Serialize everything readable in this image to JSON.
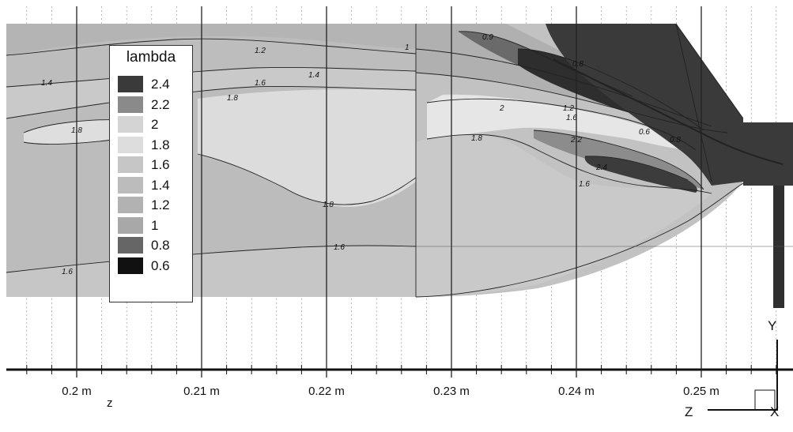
{
  "chart_data": {
    "type": "contour",
    "legend": {
      "title": "lambda",
      "levels": [
        {
          "label": "2.4",
          "value": 2.4,
          "color": "#3a3a3a"
        },
        {
          "label": "2.2",
          "value": 2.2,
          "color": "#8a8a8a"
        },
        {
          "label": "2",
          "value": 2.0,
          "color": "#d4d4d4"
        },
        {
          "label": "1.8",
          "value": 1.8,
          "color": "#dddddd"
        },
        {
          "label": "1.6",
          "value": 1.6,
          "color": "#c6c6c6"
        },
        {
          "label": "1.4",
          "value": 1.4,
          "color": "#bcbcbc"
        },
        {
          "label": "1.2",
          "value": 1.2,
          "color": "#b2b2b2"
        },
        {
          "label": "1",
          "value": 1.0,
          "color": "#a8a8a8"
        },
        {
          "label": "0.8",
          "value": 0.8,
          "color": "#666666"
        },
        {
          "label": "0.6",
          "value": 0.6,
          "color": "#111111"
        }
      ]
    },
    "x_axis": {
      "label": "z",
      "unit": "m",
      "ticks": [
        {
          "value": 0.2,
          "label": "0.2 m"
        },
        {
          "value": 0.21,
          "label": "0.21 m"
        },
        {
          "value": 0.22,
          "label": "0.22 m"
        },
        {
          "value": 0.23,
          "label": "0.23 m"
        },
        {
          "value": 0.24,
          "label": "0.24 m"
        },
        {
          "value": 0.25,
          "label": "0.25 m"
        }
      ]
    },
    "contour_labels": [
      {
        "text": "1.2",
        "z": 0.2145,
        "region": "upper"
      },
      {
        "text": "1",
        "z": 0.2265,
        "region": "upper"
      },
      {
        "text": "1.4",
        "z": 0.1965,
        "region": "upper-left"
      },
      {
        "text": "1.6",
        "z": 0.2145,
        "region": "upper"
      },
      {
        "text": "1.4",
        "z": 0.2185,
        "region": "upper"
      },
      {
        "text": "1.8",
        "z": 0.2125,
        "region": "upper"
      },
      {
        "text": "1.8",
        "z": 0.2,
        "region": "middle-left"
      },
      {
        "text": "1.8",
        "z": 0.2205,
        "region": "middle"
      },
      {
        "text": "1.6",
        "z": 0.2225,
        "region": "lower"
      },
      {
        "text": "1.6",
        "z": 0.1995,
        "region": "lower-left"
      },
      {
        "text": "0.9",
        "z": 0.233,
        "region": "upper-right"
      },
      {
        "text": "0.8",
        "z": 0.2375,
        "region": "upper-right"
      },
      {
        "text": "1.2",
        "z": 0.239,
        "region": "right"
      },
      {
        "text": "1.6",
        "z": 0.2395,
        "region": "right"
      },
      {
        "text": "2",
        "z": 0.2345,
        "region": "right"
      },
      {
        "text": "1.8",
        "z": 0.232,
        "region": "right"
      },
      {
        "text": "2.2",
        "z": 0.2415,
        "region": "right"
      },
      {
        "text": "2.4",
        "z": 0.244,
        "region": "right"
      },
      {
        "text": "1.6",
        "z": 0.2415,
        "region": "lower-right"
      },
      {
        "text": "0.6",
        "z": 0.2435,
        "region": "right"
      },
      {
        "text": "0.8",
        "z": 0.2455,
        "region": "right"
      }
    ],
    "triad": {
      "z_label": "Z",
      "y_label": "Y",
      "x_label": "X"
    }
  }
}
